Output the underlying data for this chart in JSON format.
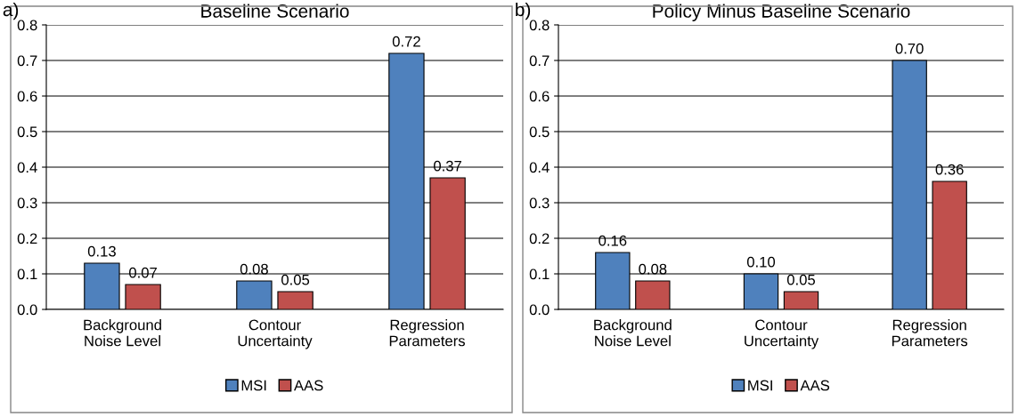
{
  "chart_data": [
    {
      "type": "bar",
      "title": "Baseline Scenario",
      "annotations": [
        "a)"
      ],
      "categories": [
        "Background\nNoise Level",
        "Contour\nUncertainty",
        "Regression\nParameters"
      ],
      "series": [
        {
          "name": "MSI",
          "color": "#4f81bd",
          "values": [
            0.13,
            0.08,
            0.72
          ],
          "value_labels": [
            "0.13",
            "0.08",
            "0.72"
          ]
        },
        {
          "name": "AAS",
          "color": "#c0504d",
          "values": [
            0.07,
            0.05,
            0.37
          ],
          "value_labels": [
            "0.07",
            "0.05",
            "0.37"
          ]
        }
      ],
      "ylim": [
        0,
        0.8
      ],
      "yticks": [
        {
          "value": 0,
          "label": "0.0"
        },
        {
          "value": 0.1,
          "label": "0.1"
        },
        {
          "value": 0.2,
          "label": "0.2"
        },
        {
          "value": 0.3,
          "label": "0.3"
        },
        {
          "value": 0.4,
          "label": "0.4"
        },
        {
          "value": 0.5,
          "label": "0.5"
        },
        {
          "value": 0.6,
          "label": "0.6"
        },
        {
          "value": 0.7,
          "label": "0.7"
        },
        {
          "value": 0.8,
          "label": "0.8"
        }
      ],
      "grid": "y",
      "legend": "bottom"
    },
    {
      "type": "bar",
      "title": "Policy Minus Baseline Scenario",
      "annotations": [
        "b)"
      ],
      "categories": [
        "Background\nNoise Level",
        "Contour\nUncertainty",
        "Regression\nParameters"
      ],
      "series": [
        {
          "name": "MSI",
          "color": "#4f81bd",
          "values": [
            0.16,
            0.1,
            0.7
          ],
          "value_labels": [
            "0.16",
            "0.10",
            "0.70"
          ]
        },
        {
          "name": "AAS",
          "color": "#c0504d",
          "values": [
            0.08,
            0.05,
            0.36
          ],
          "value_labels": [
            "0.08",
            "0.05",
            "0.36"
          ]
        }
      ],
      "ylim": [
        0,
        0.8
      ],
      "yticks": [
        {
          "value": 0,
          "label": "0.0"
        },
        {
          "value": 0.1,
          "label": "0.1"
        },
        {
          "value": 0.2,
          "label": "0.2"
        },
        {
          "value": 0.3,
          "label": "0.3"
        },
        {
          "value": 0.4,
          "label": "0.4"
        },
        {
          "value": 0.5,
          "label": "0.5"
        },
        {
          "value": 0.6,
          "label": "0.6"
        },
        {
          "value": 0.7,
          "label": "0.7"
        },
        {
          "value": 0.8,
          "label": "0.8"
        }
      ],
      "grid": "y",
      "legend": "bottom"
    }
  ]
}
